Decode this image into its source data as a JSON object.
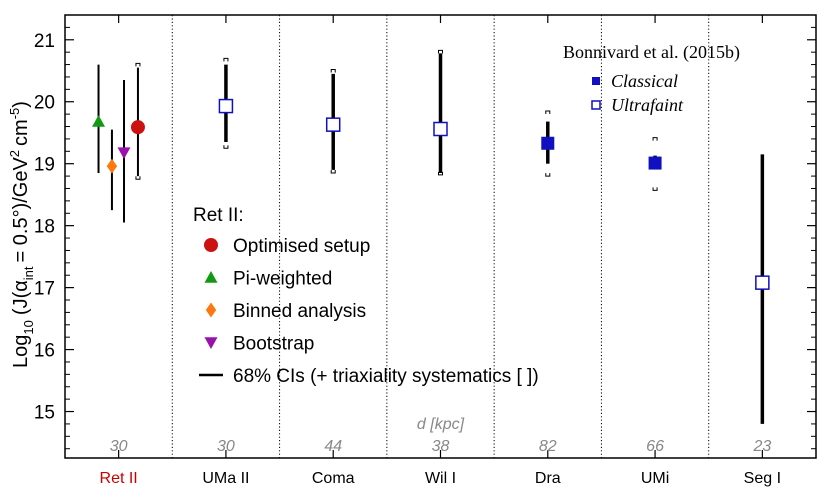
{
  "chart_data": {
    "type": "scatter",
    "ylabel": "Log10 (J(α_int = 0.5°)/GeV² cm⁻⁵)",
    "ylabel_parts": {
      "log": "Log",
      "log_sub": "10",
      "pre": "(J(α",
      "alpha_sub": "int",
      "mid": "= 0.5°)/GeV",
      "sup2": "2",
      "cm": "cm",
      "sup5": "-5",
      "close": ")"
    },
    "ylim": [
      14.25,
      21.4
    ],
    "yticks": [
      15,
      16,
      17,
      18,
      19,
      20,
      21
    ],
    "categories": [
      {
        "name": "Ret II",
        "color": "#cc0000",
        "distance": "30"
      },
      {
        "name": "UMa II",
        "color": "#000000",
        "distance": "30"
      },
      {
        "name": "Coma",
        "color": "#000000",
        "distance": "44"
      },
      {
        "name": "Wil I",
        "color": "#000000",
        "distance": "38"
      },
      {
        "name": "Dra",
        "color": "#000000",
        "distance": "82"
      },
      {
        "name": "UMi",
        "color": "#000000",
        "distance": "66"
      },
      {
        "name": "Seg I",
        "color": "#000000",
        "distance": "23"
      }
    ],
    "distance_label": "d [kpc]",
    "ret2_series": [
      {
        "name": "Pi-weighted",
        "marker": "triangle-up",
        "color": "#119911",
        "offset": -0.75,
        "value": 19.68,
        "ci": [
          18.85,
          20.6
        ]
      },
      {
        "name": "Binned analysis",
        "marker": "diamond",
        "color": "#ff7711",
        "offset": -0.25,
        "value": 18.96,
        "ci": [
          18.25,
          19.55
        ]
      },
      {
        "name": "Bootstrap",
        "marker": "triangle-down",
        "color": "#9911aa",
        "offset": 0.2,
        "value": 19.18,
        "ci": [
          18.05,
          20.35
        ]
      },
      {
        "name": "Optimised setup",
        "marker": "circle",
        "color": "#cc1111",
        "offset": 0.72,
        "value": 19.59,
        "ci": [
          18.8,
          20.55
        ],
        "syst": [
          18.75,
          20.62
        ]
      }
    ],
    "bonnivard": [
      {
        "name": "UMa II",
        "type": "Ultrafaint",
        "value": 19.93,
        "ci": [
          19.35,
          20.6
        ],
        "syst": [
          19.25,
          20.7
        ]
      },
      {
        "name": "Coma",
        "type": "Ultrafaint",
        "value": 19.63,
        "ci": [
          18.9,
          20.45
        ],
        "syst": [
          18.85,
          20.52
        ]
      },
      {
        "name": "Wil I",
        "type": "Ultrafaint",
        "value": 19.56,
        "ci": [
          18.85,
          20.78
        ],
        "syst": [
          18.82,
          20.83
        ]
      },
      {
        "name": "Dra",
        "type": "Classical",
        "value": 19.33,
        "ci": [
          19.0,
          19.68
        ],
        "syst": [
          18.8,
          19.85
        ]
      },
      {
        "name": "UMi",
        "type": "Classical",
        "value": 19.01,
        "ci": [
          18.97,
          19.13
        ],
        "syst": [
          18.57,
          19.42
        ]
      },
      {
        "name": "Seg I",
        "type": "Ultrafaint",
        "value": 17.08,
        "ci": [
          14.8,
          19.15
        ]
      }
    ],
    "legend_ret2": {
      "title": "Ret II:",
      "items": [
        {
          "label": "Optimised setup",
          "marker": "circle",
          "color": "#cc1111"
        },
        {
          "label": "Pi-weighted",
          "marker": "triangle-up",
          "color": "#119911"
        },
        {
          "label": "Binned analysis",
          "marker": "diamond",
          "color": "#ff7711"
        },
        {
          "label": "Bootstrap",
          "marker": "triangle-down",
          "color": "#9911aa"
        },
        {
          "label": "68% CIs (+ triaxiality systematics [ ])",
          "marker": "line",
          "color": "#000000"
        }
      ],
      "position": "center-left"
    },
    "legend_bonnivard": {
      "title": "Bonnivard et al. (2015b)",
      "items": [
        {
          "label": "Classical",
          "marker": "square-filled",
          "color": "#1010c0"
        },
        {
          "label": "Ultrafaint",
          "marker": "square-open",
          "color": "#1010c0"
        }
      ],
      "position": "top-right"
    },
    "colors": {
      "classical": "#1010c0",
      "distance_text": "#888888",
      "ret2_label": "#cc0000"
    }
  }
}
